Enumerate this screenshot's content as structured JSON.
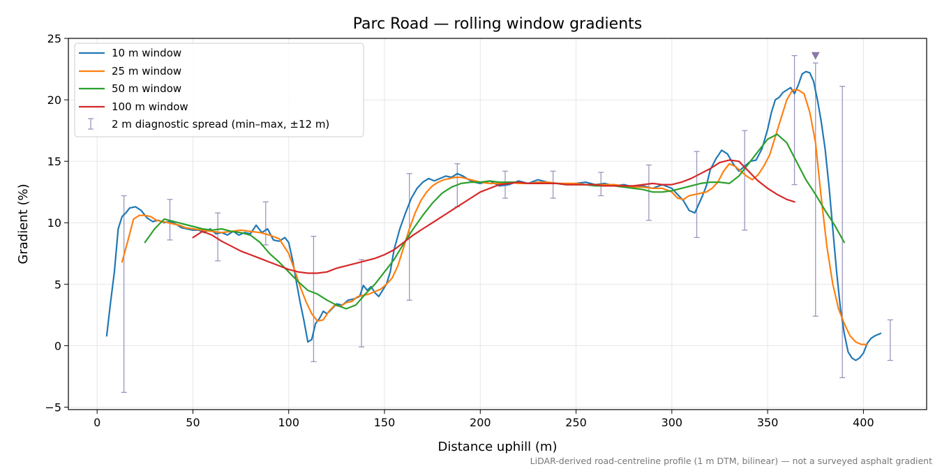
{
  "chart_data": {
    "type": "line",
    "title": "Parc Road — rolling window gradients",
    "xlabel": "Distance uphill (m)",
    "ylabel": "Gradient (%)",
    "xlim": [
      -15,
      433
    ],
    "ylim": [
      -5.2,
      25
    ],
    "xticks": [
      0,
      50,
      100,
      150,
      200,
      250,
      300,
      350,
      400
    ],
    "yticks": [
      -5,
      0,
      5,
      10,
      15,
      20,
      25
    ],
    "xtick_labels": [
      "0",
      "50",
      "100",
      "150",
      "200",
      "250",
      "300",
      "350",
      "400"
    ],
    "ytick_labels": [
      "−5",
      "0",
      "5",
      "10",
      "15",
      "20",
      "25"
    ],
    "grid": true,
    "legend_position": "top-left",
    "footnote": "LiDAR-derived road-centreline profile (1 m DTM, bilinear) — not a surveyed asphalt gradient",
    "series": [
      {
        "name": "10 m window",
        "color": "#1f77b4",
        "x": [
          5,
          7,
          9,
          11,
          13,
          15,
          17,
          20,
          23,
          26,
          29,
          32,
          35,
          38,
          41,
          44,
          47,
          50,
          53,
          56,
          59,
          62,
          65,
          68,
          71,
          74,
          77,
          80,
          83,
          86,
          89,
          92,
          95,
          98,
          100,
          102,
          104,
          106,
          108,
          110,
          112,
          114,
          116,
          118,
          120,
          122,
          125,
          128,
          131,
          134,
          137,
          139,
          141,
          143,
          145,
          147,
          149,
          151,
          153,
          155,
          158,
          161,
          164,
          167,
          170,
          173,
          176,
          179,
          182,
          185,
          188,
          191,
          194,
          197,
          200,
          205,
          210,
          215,
          220,
          225,
          230,
          235,
          240,
          245,
          250,
          255,
          260,
          265,
          270,
          275,
          280,
          285,
          290,
          295,
          300,
          303,
          306,
          309,
          312,
          314,
          316,
          318,
          320,
          323,
          326,
          329,
          332,
          335,
          338,
          341,
          344,
          347,
          350,
          352,
          354,
          356,
          358,
          360,
          362,
          364,
          366,
          368,
          370,
          372,
          374,
          376,
          378,
          380,
          382,
          384,
          386,
          388,
          390,
          392,
          394,
          396,
          398,
          400,
          402,
          404,
          406,
          409
        ],
        "y": [
          0.8,
          3.5,
          6,
          9.5,
          10.5,
          10.8,
          11.2,
          11.3,
          11,
          10.4,
          10.1,
          10.2,
          10.0,
          10.1,
          9.9,
          9.6,
          9.5,
          9.4,
          9.4,
          9.2,
          9.5,
          9.1,
          9.2,
          9.0,
          9.3,
          9.0,
          9.2,
          9.1,
          9.8,
          9.2,
          9.5,
          8.6,
          8.5,
          8.8,
          8.4,
          7.0,
          5.2,
          3.5,
          2.0,
          0.3,
          0.5,
          1.8,
          2.2,
          2.8,
          2.6,
          2.9,
          3.4,
          3.3,
          3.7,
          3.8,
          4.0,
          4.9,
          4.5,
          4.8,
          4.3,
          4.0,
          4.5,
          5.0,
          6.0,
          7.8,
          9.5,
          10.8,
          12.0,
          12.8,
          13.3,
          13.6,
          13.4,
          13.6,
          13.8,
          13.7,
          14.0,
          13.8,
          13.5,
          13.3,
          13.2,
          13.4,
          13.0,
          13.1,
          13.4,
          13.2,
          13.5,
          13.3,
          13.2,
          13.1,
          13.2,
          13.3,
          13.1,
          13.2,
          13.0,
          13.1,
          12.9,
          13.0,
          12.8,
          13.1,
          12.8,
          12.3,
          11.8,
          11.0,
          10.8,
          11.5,
          12.2,
          13.0,
          14.3,
          15.2,
          15.9,
          15.6,
          14.8,
          14.2,
          14.6,
          15.0,
          15.1,
          16.0,
          17.6,
          19.0,
          20.0,
          20.2,
          20.6,
          20.8,
          21.0,
          20.5,
          21.2,
          22.1,
          22.3,
          22.2,
          21.5,
          20.0,
          18.2,
          16.0,
          13.0,
          9.5,
          6.0,
          3.0,
          1.0,
          -0.5,
          -1.0,
          -1.2,
          -1.0,
          -0.6,
          0.2,
          0.6,
          0.8,
          1.0
        ]
      },
      {
        "name": "25 m window",
        "color": "#ff7f0e",
        "x": [
          13,
          16,
          19,
          22,
          25,
          28,
          31,
          34,
          37,
          40,
          43,
          46,
          50,
          55,
          60,
          65,
          70,
          75,
          80,
          85,
          90,
          95,
          100,
          103,
          106,
          109,
          112,
          115,
          118,
          121,
          124,
          127,
          130,
          133,
          136,
          139,
          142,
          145,
          148,
          151,
          154,
          157,
          160,
          163,
          166,
          169,
          172,
          175,
          178,
          181,
          184,
          187,
          190,
          195,
          200,
          205,
          210,
          215,
          220,
          225,
          230,
          235,
          240,
          245,
          250,
          255,
          260,
          265,
          270,
          275,
          280,
          285,
          290,
          295,
          300,
          303,
          306,
          309,
          312,
          315,
          318,
          321,
          324,
          327,
          330,
          333,
          336,
          339,
          342,
          345,
          348,
          351,
          354,
          357,
          360,
          363,
          366,
          369,
          372,
          375,
          378,
          381,
          384,
          387,
          390,
          393,
          396,
          399,
          402
        ],
        "y": [
          6.8,
          8.5,
          10.3,
          10.6,
          10.6,
          10.5,
          10.2,
          10.1,
          10.0,
          9.9,
          9.8,
          9.6,
          9.5,
          9.4,
          9.3,
          9.2,
          9.3,
          9.4,
          9.3,
          9.2,
          9.0,
          8.7,
          7.5,
          6.2,
          4.8,
          3.6,
          2.6,
          2.0,
          2.1,
          2.8,
          3.3,
          3.2,
          3.5,
          3.6,
          4.0,
          4.1,
          4.2,
          4.4,
          4.6,
          5.0,
          5.5,
          6.5,
          8.0,
          9.5,
          10.8,
          11.8,
          12.5,
          13.0,
          13.3,
          13.5,
          13.6,
          13.7,
          13.7,
          13.5,
          13.3,
          13.2,
          13.2,
          13.3,
          13.2,
          13.2,
          13.3,
          13.3,
          13.2,
          13.2,
          13.2,
          13.1,
          13.1,
          13.1,
          13.1,
          13.0,
          12.9,
          12.9,
          12.8,
          12.8,
          12.5,
          12.0,
          11.9,
          12.2,
          12.3,
          12.4,
          12.5,
          12.8,
          13.3,
          14.2,
          14.8,
          14.6,
          14.2,
          13.8,
          13.5,
          13.9,
          14.6,
          15.5,
          17.0,
          18.5,
          20.0,
          20.8,
          20.8,
          20.5,
          19.0,
          16.5,
          12.0,
          8.0,
          5.0,
          3.0,
          1.8,
          0.8,
          0.3,
          0.1,
          0.1
        ]
      },
      {
        "name": "50 m window",
        "color": "#2ca02c",
        "x": [
          25,
          30,
          35,
          40,
          45,
          50,
          55,
          60,
          65,
          70,
          75,
          80,
          85,
          90,
          95,
          100,
          105,
          110,
          115,
          120,
          125,
          130,
          135,
          140,
          145,
          150,
          155,
          160,
          165,
          170,
          175,
          180,
          185,
          190,
          195,
          200,
          205,
          210,
          215,
          220,
          225,
          230,
          235,
          240,
          245,
          250,
          255,
          260,
          265,
          270,
          275,
          280,
          285,
          290,
          295,
          300,
          305,
          310,
          315,
          320,
          325,
          330,
          335,
          340,
          345,
          350,
          355,
          360,
          365,
          370,
          375,
          380,
          385,
          390
        ],
        "y": [
          8.4,
          9.5,
          10.3,
          10.1,
          9.9,
          9.7,
          9.5,
          9.4,
          9.5,
          9.3,
          9.2,
          9.0,
          8.4,
          7.5,
          6.8,
          6.0,
          5.2,
          4.5,
          4.2,
          3.7,
          3.3,
          3.0,
          3.3,
          4.2,
          5.0,
          6.0,
          7.0,
          8.3,
          9.5,
          10.6,
          11.6,
          12.4,
          12.9,
          13.2,
          13.3,
          13.3,
          13.4,
          13.3,
          13.3,
          13.3,
          13.2,
          13.2,
          13.2,
          13.2,
          13.1,
          13.1,
          13.1,
          13.0,
          13.0,
          13.0,
          12.9,
          12.8,
          12.7,
          12.5,
          12.5,
          12.6,
          12.8,
          13.0,
          13.2,
          13.3,
          13.3,
          13.2,
          13.8,
          14.8,
          15.8,
          16.8,
          17.2,
          16.5,
          15.0,
          13.5,
          12.3,
          11.0,
          9.8,
          8.4
        ]
      },
      {
        "name": "100 m window",
        "color": "#d62728",
        "x": [
          50,
          55,
          60,
          65,
          70,
          75,
          80,
          85,
          90,
          95,
          100,
          105,
          110,
          115,
          120,
          125,
          130,
          135,
          140,
          145,
          150,
          155,
          160,
          165,
          170,
          175,
          180,
          185,
          190,
          195,
          200,
          205,
          210,
          215,
          220,
          225,
          230,
          235,
          240,
          245,
          250,
          255,
          260,
          265,
          270,
          275,
          280,
          285,
          290,
          295,
          300,
          305,
          310,
          315,
          320,
          325,
          330,
          335,
          340,
          345,
          350,
          355,
          360,
          364
        ],
        "y": [
          8.8,
          9.3,
          9.0,
          8.5,
          8.1,
          7.7,
          7.4,
          7.1,
          6.8,
          6.5,
          6.2,
          6.0,
          5.9,
          5.9,
          6.0,
          6.3,
          6.5,
          6.7,
          6.9,
          7.1,
          7.4,
          7.8,
          8.4,
          9.0,
          9.5,
          10.0,
          10.5,
          11.0,
          11.5,
          12.0,
          12.5,
          12.8,
          13.1,
          13.2,
          13.3,
          13.2,
          13.2,
          13.2,
          13.2,
          13.1,
          13.1,
          13.1,
          13.1,
          13.0,
          13.0,
          13.0,
          13.0,
          13.1,
          13.2,
          13.1,
          13.1,
          13.3,
          13.6,
          14.0,
          14.4,
          14.9,
          15.1,
          15.0,
          14.2,
          13.4,
          12.8,
          12.3,
          11.9,
          11.7
        ]
      }
    ],
    "errorbars": {
      "name": "2 m diagnostic spread (min–max, ±12 m)",
      "color": "#9b94bd",
      "x": [
        14,
        38,
        63,
        88,
        113,
        138,
        163,
        188,
        213,
        238,
        263,
        288,
        313,
        338,
        364,
        375,
        389,
        414
      ],
      "low": [
        -3.8,
        8.6,
        6.9,
        8.2,
        -1.3,
        -0.1,
        3.7,
        11.3,
        12.0,
        12.0,
        12.2,
        10.2,
        8.8,
        9.4,
        13.1,
        2.4,
        -2.6,
        -1.2
      ],
      "high": [
        12.2,
        11.9,
        10.8,
        11.7,
        8.9,
        7.0,
        14.0,
        14.8,
        14.2,
        14.2,
        14.1,
        14.7,
        15.8,
        17.5,
        23.6,
        23.0,
        21.1,
        2.1
      ]
    },
    "marker": {
      "type": "triangle-down",
      "x": 375,
      "y": 23.6,
      "color": "#8b77a8"
    }
  }
}
